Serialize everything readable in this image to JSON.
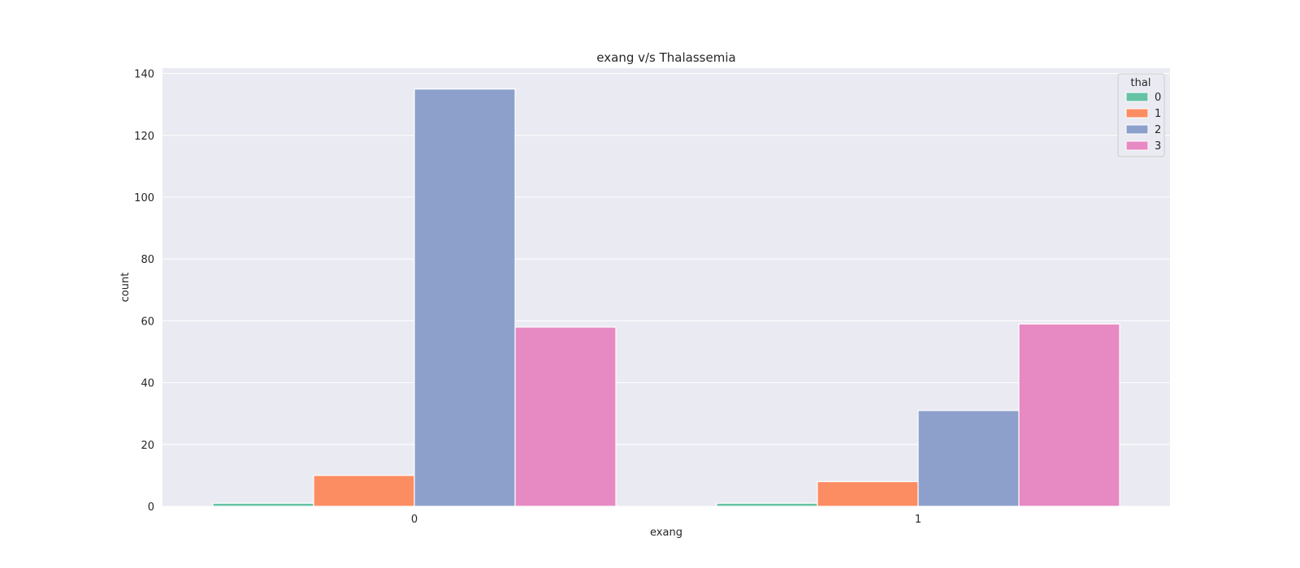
{
  "chart_data": {
    "type": "bar",
    "title": "exang v/s Thalassemia",
    "xlabel": "exang",
    "ylabel": "count",
    "categories": [
      "0",
      "1"
    ],
    "series": [
      {
        "name": "0",
        "color": "#66c2a5",
        "values": [
          1,
          1
        ]
      },
      {
        "name": "1",
        "color": "#fc8d62",
        "values": [
          10,
          8
        ]
      },
      {
        "name": "2",
        "color": "#8da0cb",
        "values": [
          135,
          31
        ]
      },
      {
        "name": "3",
        "color": "#e78ac3",
        "values": [
          58,
          59
        ]
      }
    ],
    "yticks": [
      "0",
      "20",
      "40",
      "60",
      "80",
      "100",
      "120",
      "140"
    ],
    "ylim": [
      0,
      141.75
    ],
    "grid": true,
    "legend": {
      "title": "thal",
      "placement": "top-right"
    },
    "style": {
      "plot_background": "#eaeaf2",
      "gridline_color": "#ffffff"
    }
  }
}
